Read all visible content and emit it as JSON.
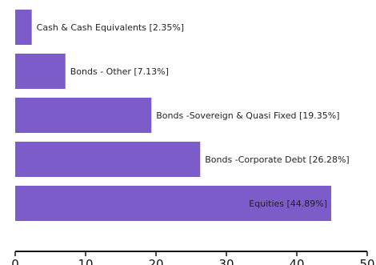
{
  "chart_data": {
    "type": "bar",
    "orientation": "horizontal",
    "categories": [
      "Cash & Cash Equivalents [2.35%]",
      "Bonds  - Other [7.13%]",
      "Bonds -Sovereign & Quasi Fixed [19.35%]",
      "Bonds -Corporate Debt [26.28%]",
      "Equities [44.89%]"
    ],
    "values": [
      2.35,
      7.13,
      19.35,
      26.28,
      44.89
    ],
    "xlim": [
      0,
      50
    ],
    "x_ticks": [
      "0",
      "10",
      "20",
      "30",
      "40",
      "50"
    ],
    "bar_color": "#7b5cc8",
    "grid": false,
    "title": "",
    "xlabel": "",
    "ylabel": ""
  }
}
